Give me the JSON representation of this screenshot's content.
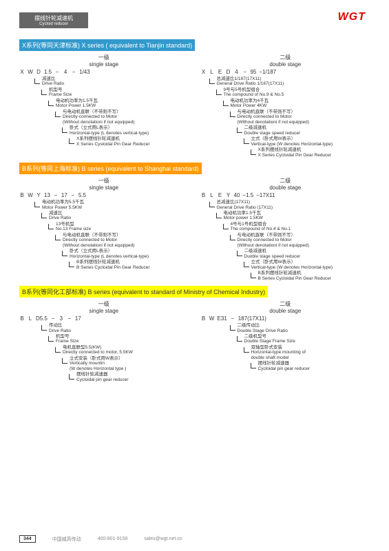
{
  "logo": "WGT",
  "header": {
    "cn": "摆线针轮减速机",
    "en": "Cycloid reducer"
  },
  "sections": [
    {
      "head_class": "head-x",
      "title": "X系列(等同天津标准)   X series ( equivalent to Tianjin standard)",
      "single": {
        "stage_cn": "一级",
        "stage_en": "single stage",
        "code": [
          "X",
          "W",
          "D",
          "1.5",
          "−",
          "4",
          "−",
          "1/43"
        ],
        "items": [
          {
            "cn": "减速比",
            "en": "Drive Ratio"
          },
          {
            "cn": "机型号",
            "en": "Frame Size"
          },
          {
            "cn": "电动机功率为1.5千瓦",
            "en": "Motor Power 1.5KW"
          },
          {
            "cn": "与电动机直联（不带则不写）",
            "en": "Directly-connected to Motor",
            "en2": "(Without denotationi if not equipped)"
          },
          {
            "cn": "卧式（立式用L表示）",
            "en": "Horizontal-type (L denotes vertical-type)"
          },
          {
            "cn": "X系列摆线针轮减速机",
            "en": "X Series Cysloidal Pin Gear Reducer"
          }
        ]
      },
      "double": {
        "stage_cn": "二级",
        "stage_en": "double stage",
        "code": [
          "X",
          "L",
          "E",
          "D",
          "4",
          "−",
          "95",
          "−1/187"
        ],
        "items": [
          {
            "cn": "总减速比1/187(17X11)",
            "en": "General Drive Ratio 1/187(17X11)"
          },
          {
            "cn": "9号与5号机型组合",
            "en": "The compound of No.9 & No.5"
          },
          {
            "cn": "电动机功率为4千瓦",
            "en": "Motor Power 4KW"
          },
          {
            "cn": "与电动机直联（不带则不写）",
            "en": "Directly connected to Motor",
            "en2": "(Without denotationi if not equipped)"
          },
          {
            "cn": "二级减速机",
            "en": "Double stage speed reducer"
          },
          {
            "cn": "立式（卧式用W表示）",
            "en": "Vertical-type (W denotes Horizontal-type)"
          },
          {
            "cn": "X系列摆线针轮减速机",
            "en": "X Series Cycloidal Pin Gear Reducer"
          }
        ]
      }
    },
    {
      "head_class": "head-b1",
      "title": "B系列(等同上海标准)   B series (equivalent to Shanghai standard)",
      "single": {
        "stage_cn": "一级",
        "stage_en": "single stage",
        "code": [
          "B",
          "W",
          "Y",
          "13",
          "−",
          "17",
          "−",
          "5.5"
        ],
        "items": [
          {
            "cn": "电动机功率为5.5千瓦",
            "en": "Motor Power 5.5KW"
          },
          {
            "cn": "减速比",
            "en": "Drive Ratio"
          },
          {
            "cn": "13号机型",
            "en": "No.13 Frame size"
          },
          {
            "cn": "与电动机直联（不带则不写）",
            "en": "Directly connected to Motor",
            "en2": "(Without denotationi if not equipped)"
          },
          {
            "cn": "卧式（立式用L表示）",
            "en": "Horizontal-type (L denotes vertical-type)"
          },
          {
            "cn": "B系列摆线针轮减速机",
            "en": "B Series Cycloidal Pin Gear Reducer"
          }
        ]
      },
      "double": {
        "stage_cn": "二级",
        "stage_en": "double stage",
        "code": [
          "B",
          "L",
          "E",
          "Y",
          "40",
          "−1.5",
          "−17X11"
        ],
        "items": [
          {
            "cn": "总减速比(17X11)",
            "en": "General Drive Ratio (17X11)"
          },
          {
            "cn": "电动机功率1.5千瓦",
            "en": "Motor power 1.5KW"
          },
          {
            "cn": "4号与1号机型组合",
            "en": "The compound of No.4 & No.1"
          },
          {
            "cn": "与电动机直联（不带则不写）",
            "en": "Directly connected to Motor",
            "en2": "(Without denotationi if not equipped)"
          },
          {
            "cn": "二级减速机",
            "en": "Duoble stage speed reducer"
          },
          {
            "cn": "立式（卧式用W表示）",
            "en": "Vertical-type (W denotes Horizontal-type)"
          },
          {
            "cn": "B系列摆线针轮减速机",
            "en": "B Series Cycloidal Pin Gear Reducer"
          }
        ]
      }
    },
    {
      "head_class": "head-b2",
      "title": "B系列(等同化工部标准)   B series (equivalent to standard of Ministry of Chemical Industry)",
      "single": {
        "stage_cn": "一级",
        "stage_en": "single stage",
        "code": [
          "B",
          "L",
          "D5.5",
          "−",
          "3",
          "−",
          "17"
        ],
        "items": [
          {
            "cn": "传动比",
            "en": "Drive Ratio"
          },
          {
            "cn": "机型号",
            "en": "Frame Size"
          },
          {
            "cn": "电机直联型5.5(KW)",
            "en": "Directly connected to motor, 5.5KW"
          },
          {
            "cn": "立式安装（卧式用W表示）",
            "en": "Vertically mountin",
            "en2": "(W denotes Horizontal type )"
          },
          {
            "cn": "摆线针轮减速器",
            "en": "Cycloidal pin gear reducer"
          }
        ]
      },
      "double": {
        "stage_cn": "二级",
        "stage_en": "double stage",
        "code": [
          "B",
          "W",
          "E31",
          "−",
          "187(17X11)"
        ],
        "items": [
          {
            "cn": "二级传动比",
            "en": "Double Stage Drive Ratio"
          },
          {
            "cn": "二级机型号",
            "en": "Double Stage Frame Size"
          },
          {
            "cn": "双轴型卧式安装",
            "en": "Horizontal-type mounting of",
            "en2": "double shaft model"
          },
          {
            "cn": "摆线针轮减速器",
            "en": "Cycloidal pin gear reducer"
          }
        ]
      }
    }
  ],
  "footer": {
    "page": "344",
    "company": "中国威高传动",
    "phone": "400-801-9158",
    "email": "sales@wgt.net.cn"
  }
}
